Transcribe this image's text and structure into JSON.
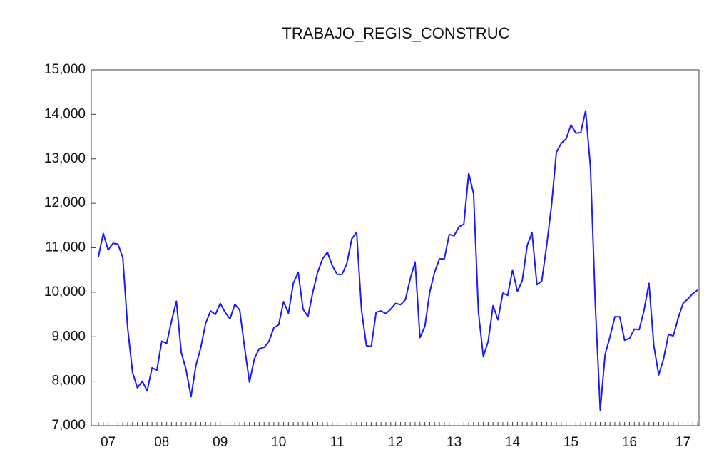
{
  "chart_data": {
    "type": "line",
    "title": "TRABAJO_REGIS_CONSTRUC",
    "categories": [
      null,
      null,
      "07",
      null,
      null,
      null,
      null,
      null,
      null,
      null,
      null,
      null,
      null,
      "08",
      null,
      null,
      null,
      null,
      null,
      null,
      null,
      null,
      null,
      null,
      null,
      "09",
      null,
      null,
      null,
      null,
      null,
      null,
      null,
      null,
      null,
      null,
      null,
      "10",
      null,
      null,
      null,
      null,
      null,
      null,
      null,
      null,
      null,
      null,
      null,
      "11",
      null,
      null,
      null,
      null,
      null,
      null,
      null,
      null,
      null,
      null,
      null,
      "12",
      null,
      null,
      null,
      null,
      null,
      null,
      null,
      null,
      null,
      null,
      null,
      "13",
      null,
      null,
      null,
      null,
      null,
      null,
      null,
      null,
      null,
      null,
      null,
      "14",
      null,
      null,
      null,
      null,
      null,
      null,
      null,
      null,
      null,
      null,
      null,
      "15",
      null,
      null,
      null,
      null,
      null,
      null,
      null,
      null,
      null,
      null,
      null,
      "16",
      null,
      null,
      null,
      null,
      null,
      null,
      null,
      null,
      null,
      null,
      "17",
      null,
      null,
      null
    ],
    "series": [
      {
        "name": "TRABAJO_REGIS_CONSTRUC",
        "color": "#1a1aff",
        "values": [
          10800,
          11320,
          10950,
          11100,
          11080,
          10780,
          9200,
          8200,
          7850,
          8000,
          7780,
          8300,
          8250,
          8900,
          8850,
          9350,
          9800,
          8650,
          8250,
          7650,
          8350,
          8750,
          9300,
          9580,
          9500,
          9750,
          9550,
          9400,
          9730,
          9600,
          8750,
          7980,
          8500,
          8730,
          8760,
          8900,
          9200,
          9270,
          9790,
          9530,
          10200,
          10450,
          9620,
          9450,
          10000,
          10450,
          10750,
          10900,
          10600,
          10400,
          10400,
          10650,
          11200,
          11350,
          9600,
          8800,
          8780,
          9550,
          9580,
          9520,
          9620,
          9750,
          9720,
          9830,
          10300,
          10680,
          8980,
          9230,
          10000,
          10450,
          10750,
          10750,
          11300,
          11270,
          11470,
          11530,
          12680,
          12220,
          9550,
          8550,
          8900,
          9700,
          9380,
          9980,
          9930,
          10500,
          10020,
          10260,
          11050,
          11340,
          10170,
          10250,
          11050,
          11950,
          13150,
          13350,
          13450,
          13760,
          13580,
          13590,
          14080,
          12800,
          9700,
          7350,
          8600,
          9000,
          9450,
          9450,
          8920,
          8960,
          9170,
          9160,
          9600,
          10200,
          8800,
          8140,
          8500,
          9050,
          9020,
          9420,
          9750,
          9850,
          9970,
          10050
        ]
      }
    ],
    "ylim": [
      7000,
      15000
    ],
    "yticks": [
      {
        "value": 7000,
        "label": "7,000"
      },
      {
        "value": 8000,
        "label": "8,000"
      },
      {
        "value": 9000,
        "label": "9,000"
      },
      {
        "value": 10000,
        "label": "10,000"
      },
      {
        "value": 11000,
        "label": "11,000"
      },
      {
        "value": 12000,
        "label": "12,000"
      },
      {
        "value": 13000,
        "label": "13,000"
      },
      {
        "value": 14000,
        "label": "14,000"
      },
      {
        "value": 15000,
        "label": "15,000"
      }
    ]
  }
}
